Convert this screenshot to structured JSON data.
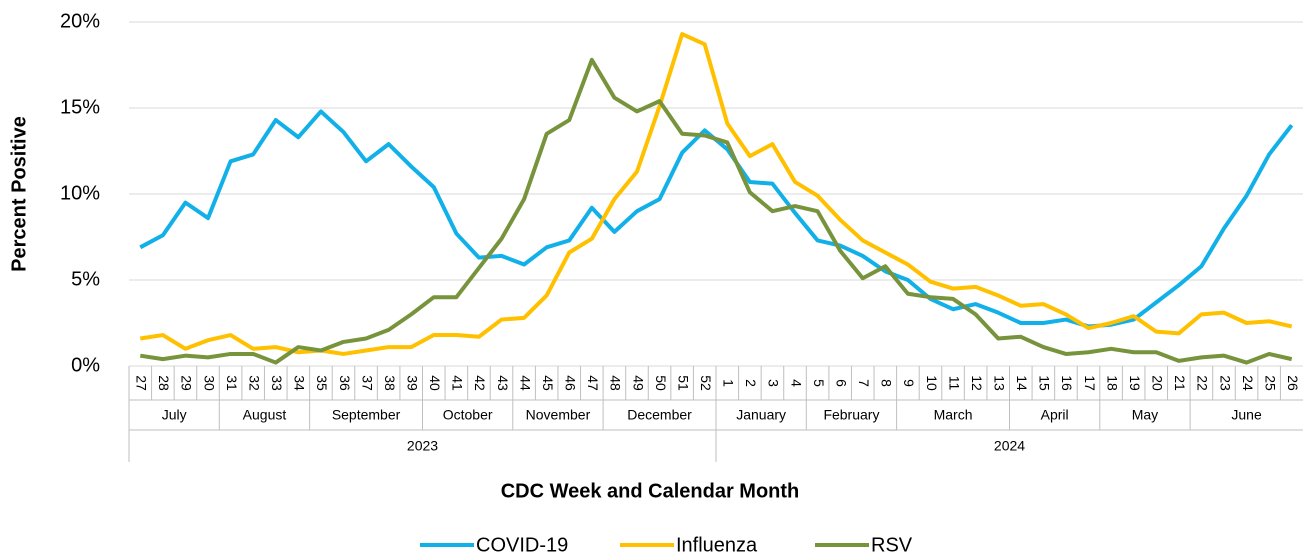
{
  "chart_data": {
    "type": "line",
    "x_label": "CDC Week and Calendar Month",
    "y_label": "Percent Positive",
    "categories": [
      "27",
      "28",
      "29",
      "30",
      "31",
      "32",
      "33",
      "34",
      "35",
      "36",
      "37",
      "38",
      "39",
      "40",
      "41",
      "42",
      "43",
      "44",
      "45",
      "46",
      "47",
      "48",
      "49",
      "50",
      "51",
      "52",
      "1",
      "2",
      "3",
      "4",
      "5",
      "6",
      "7",
      "8",
      "9",
      "10",
      "11",
      "12",
      "13",
      "14",
      "15",
      "16",
      "17",
      "18",
      "19",
      "20",
      "21",
      "22",
      "23",
      "24",
      "25",
      "26"
    ],
    "months": [
      "July",
      null,
      null,
      null,
      "August",
      null,
      null,
      null,
      "September",
      null,
      null,
      null,
      null,
      "October",
      null,
      null,
      null,
      "November",
      null,
      null,
      null,
      "December",
      null,
      null,
      null,
      null,
      "January",
      null,
      null,
      null,
      "February",
      null,
      null,
      null,
      "March",
      null,
      null,
      null,
      null,
      "April",
      null,
      null,
      null,
      "May",
      null,
      null,
      null,
      "June",
      null,
      null,
      null,
      null
    ],
    "years": [
      "2023",
      null,
      null,
      null,
      null,
      null,
      null,
      null,
      null,
      null,
      null,
      null,
      null,
      null,
      null,
      null,
      null,
      null,
      null,
      null,
      null,
      null,
      null,
      null,
      null,
      null,
      "2024",
      null,
      null,
      null,
      null,
      null,
      null,
      null,
      null,
      null,
      null,
      null,
      null,
      null,
      null,
      null,
      null,
      null,
      null,
      null,
      null,
      null,
      null,
      null,
      null,
      null
    ],
    "series": [
      {
        "name": "COVID-19",
        "color": "#12b0e8",
        "values": [
          6.9,
          7.6,
          9.5,
          8.6,
          11.9,
          12.3,
          14.3,
          13.3,
          14.8,
          13.6,
          11.9,
          12.9,
          11.6,
          10.4,
          7.7,
          6.3,
          6.4,
          5.9,
          6.9,
          7.3,
          9.2,
          7.8,
          9.0,
          9.7,
          12.4,
          13.7,
          12.6,
          10.7,
          10.6,
          8.9,
          7.3,
          7.0,
          6.4,
          5.5,
          5.0,
          3.9,
          3.3,
          3.6,
          3.1,
          2.5,
          2.5,
          2.7,
          2.3,
          2.4,
          2.7,
          3.7,
          4.7,
          5.8,
          8.0,
          9.9,
          12.3,
          14.0
        ]
      },
      {
        "name": "Influenza",
        "color": "#ffc000",
        "values": [
          1.6,
          1.8,
          1.0,
          1.5,
          1.8,
          1.0,
          1.1,
          0.8,
          0.9,
          0.7,
          0.9,
          1.1,
          1.1,
          1.8,
          1.8,
          1.7,
          2.7,
          2.8,
          4.1,
          6.6,
          7.4,
          9.7,
          11.3,
          15.1,
          19.3,
          18.7,
          14.1,
          12.2,
          12.9,
          10.7,
          9.9,
          8.5,
          7.3,
          6.6,
          5.9,
          4.9,
          4.5,
          4.6,
          4.1,
          3.5,
          3.6,
          3.0,
          2.2,
          2.5,
          2.9,
          2.0,
          1.9,
          3.0,
          3.1,
          2.5,
          2.6,
          2.3
        ]
      },
      {
        "name": "RSV",
        "color": "#77933c",
        "values": [
          0.6,
          0.4,
          0.6,
          0.5,
          0.7,
          0.7,
          0.2,
          1.1,
          0.9,
          1.4,
          1.6,
          2.1,
          3.0,
          4.0,
          4.0,
          5.7,
          7.4,
          9.7,
          13.5,
          14.3,
          17.8,
          15.6,
          14.8,
          15.4,
          13.5,
          13.4,
          13.0,
          10.1,
          9.0,
          9.3,
          9.0,
          6.7,
          5.1,
          5.8,
          4.2,
          4.0,
          3.9,
          3.0,
          1.6,
          1.7,
          1.1,
          0.7,
          0.8,
          1.0,
          0.8,
          0.8,
          0.3,
          0.5,
          0.6,
          0.2,
          0.7,
          0.4
        ]
      }
    ],
    "ylim": [
      0,
      20
    ],
    "yticks": [
      {
        "value": 0,
        "label": "0%"
      },
      {
        "value": 5,
        "label": "5%"
      },
      {
        "value": 10,
        "label": "10%"
      },
      {
        "value": 15,
        "label": "15%"
      },
      {
        "value": 20,
        "label": "20%"
      }
    ],
    "grid": true,
    "legend": "bottom"
  }
}
